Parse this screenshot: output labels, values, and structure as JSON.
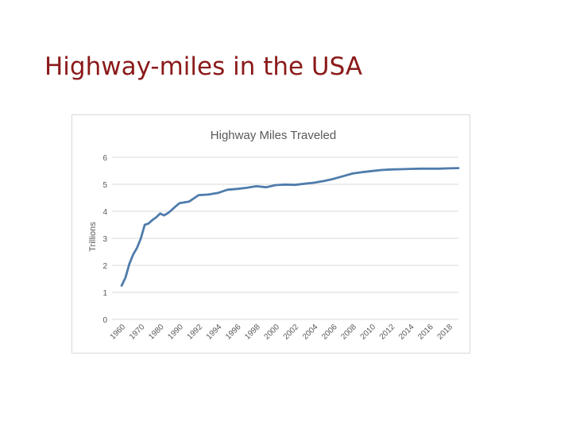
{
  "slide": {
    "title": "Highway-miles in the USA"
  },
  "chart_data": {
    "type": "line",
    "title": "Highway Miles Traveled",
    "xlabel": "",
    "ylabel": "Trillions",
    "ylim": [
      0,
      6
    ],
    "yticks": [
      "0",
      "1",
      "2",
      "3",
      "4",
      "5",
      "6"
    ],
    "categories": [
      "1960",
      "1970",
      "1980",
      "1990",
      "1992",
      "1994",
      "1996",
      "1998",
      "2000",
      "2002",
      "2004",
      "2006",
      "2008",
      "2010",
      "2012",
      "2014",
      "2016",
      "2018"
    ],
    "grid": true,
    "legend": "none",
    "series_color": "#4f7cac",
    "series": [
      {
        "x": [
          1960,
          1962,
          1964,
          1966,
          1968,
          1970,
          1972,
          1974,
          1976,
          1978,
          1980,
          1982,
          1984,
          1986,
          1988,
          1990,
          1991,
          1992,
          1993,
          1994,
          1995,
          1996,
          1997,
          1998,
          1999,
          2000,
          2001,
          2002,
          2003,
          2004,
          2005,
          2006,
          2007,
          2008,
          2009,
          2010,
          2011,
          2012,
          2013,
          2014,
          2015,
          2016,
          2017,
          2018,
          2019
        ],
        "y": [
          1.25,
          1.55,
          2.05,
          2.4,
          2.65,
          3.0,
          3.5,
          3.55,
          3.68,
          3.78,
          3.92,
          3.85,
          3.93,
          4.05,
          4.18,
          4.3,
          4.36,
          4.6,
          4.62,
          4.68,
          4.8,
          4.83,
          4.87,
          4.93,
          4.89,
          4.97,
          4.99,
          4.98,
          5.02,
          5.06,
          5.12,
          5.2,
          5.3,
          5.4,
          5.45,
          5.49,
          5.53,
          5.55,
          5.56,
          5.57,
          5.58,
          5.58,
          5.58,
          5.59,
          5.6
        ]
      }
    ]
  }
}
